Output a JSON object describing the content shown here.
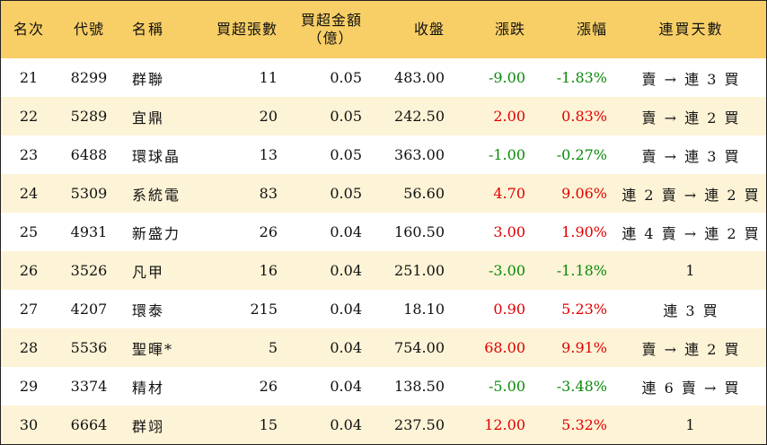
{
  "headers": {
    "rank": "名次",
    "code": "代號",
    "name": "名稱",
    "net_buy_lots": "買超張數",
    "net_buy_amount_line1": "買超金額",
    "net_buy_amount_line2": "（億）",
    "close": "收盤",
    "change": "漲跌",
    "change_pct": "漲幅",
    "consecutive_days": "連買天數"
  },
  "colors": {
    "header_bg": "#f8cf66",
    "alt_row_bg": "#fdf3d6",
    "up": "#e00000",
    "down": "#0a8a0a"
  },
  "rows": [
    {
      "rank": "21",
      "code": "8299",
      "name": "群聯",
      "lots": "11",
      "amount": "0.05",
      "close": "483.00",
      "change": "-9.00",
      "pct": "-1.83%",
      "dir": "down",
      "days": "賣 → 連 3 買"
    },
    {
      "rank": "22",
      "code": "5289",
      "name": "宜鼎",
      "lots": "20",
      "amount": "0.05",
      "close": "242.50",
      "change": "2.00",
      "pct": "0.83%",
      "dir": "up",
      "days": "賣 → 連 2 買"
    },
    {
      "rank": "23",
      "code": "6488",
      "name": "環球晶",
      "lots": "13",
      "amount": "0.05",
      "close": "363.00",
      "change": "-1.00",
      "pct": "-0.27%",
      "dir": "down",
      "days": "賣 → 連 3 買"
    },
    {
      "rank": "24",
      "code": "5309",
      "name": "系統電",
      "lots": "83",
      "amount": "0.05",
      "close": "56.60",
      "change": "4.70",
      "pct": "9.06%",
      "dir": "up",
      "days": "連 2 賣 → 連 2 買"
    },
    {
      "rank": "25",
      "code": "4931",
      "name": "新盛力",
      "lots": "26",
      "amount": "0.04",
      "close": "160.50",
      "change": "3.00",
      "pct": "1.90%",
      "dir": "up",
      "days": "連 4 賣 → 連 2 買"
    },
    {
      "rank": "26",
      "code": "3526",
      "name": "凡甲",
      "lots": "16",
      "amount": "0.04",
      "close": "251.00",
      "change": "-3.00",
      "pct": "-1.18%",
      "dir": "down",
      "days": "1"
    },
    {
      "rank": "27",
      "code": "4207",
      "name": "環泰",
      "lots": "215",
      "amount": "0.04",
      "close": "18.10",
      "change": "0.90",
      "pct": "5.23%",
      "dir": "up",
      "days": "連 3 買"
    },
    {
      "rank": "28",
      "code": "5536",
      "name": "聖暉*",
      "lots": "5",
      "amount": "0.04",
      "close": "754.00",
      "change": "68.00",
      "pct": "9.91%",
      "dir": "up",
      "days": "賣 → 連 2 買"
    },
    {
      "rank": "29",
      "code": "3374",
      "name": "精材",
      "lots": "26",
      "amount": "0.04",
      "close": "138.50",
      "change": "-5.00",
      "pct": "-3.48%",
      "dir": "down",
      "days": "連 6 賣 → 買"
    },
    {
      "rank": "30",
      "code": "6664",
      "name": "群翊",
      "lots": "15",
      "amount": "0.04",
      "close": "237.50",
      "change": "12.00",
      "pct": "5.32%",
      "dir": "up",
      "days": "1"
    }
  ]
}
